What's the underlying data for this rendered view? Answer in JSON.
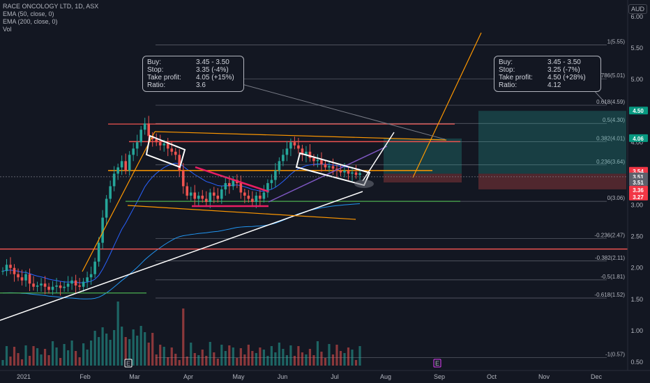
{
  "legend": {
    "title": "RACE ONCOLOGY LTD, 1D, ASX",
    "ema50": "EMA (50, close, 0)",
    "ema200": "EMA (200, close, 0)",
    "vol": "Vol"
  },
  "currency": "AUD",
  "notes": [
    {
      "rows": [
        {
          "k": "Buy:",
          "v": "3.45 - 3.50"
        },
        {
          "k": "Stop:",
          "v": "3.35 (-4%)"
        },
        {
          "k": "Take profit:",
          "v": "4.05 (+15%)"
        },
        {
          "k": "Ratio:",
          "v": "3.6"
        }
      ]
    },
    {
      "rows": [
        {
          "k": "Buy:",
          "v": "3.45 - 3.50"
        },
        {
          "k": "Stop:",
          "v": "3.25 (-7%)"
        },
        {
          "k": "Take profit:",
          "v": "4.50 (+28%)"
        },
        {
          "k": "Ratio:",
          "v": "4.12"
        }
      ]
    }
  ],
  "colors": {
    "background": "#131722",
    "up": "#26a69a",
    "down": "#ef5350",
    "ema50": "#2962ff",
    "ema200": "#2196f3",
    "support": "#ef5350",
    "target": "#4caf50",
    "orange": "#ff9800",
    "white": "#ffffff",
    "purple": "#7e57c2",
    "pink": "#e91e63",
    "fib": "#787b86",
    "badge_red": "#f23645",
    "badge_green": "#089981",
    "badge_grey": "#5d606b"
  },
  "chart_data": {
    "type": "candlestick",
    "y_axis_ticks": [
      "0.50",
      "1.00",
      "1.50",
      "2.00",
      "2.50",
      "3.00",
      "3.50",
      "4.00",
      "4.50",
      "5.00",
      "5.50",
      "6.00"
    ],
    "ylim": [
      0.45,
      6.25
    ],
    "x_axis_ticks": [
      "2021",
      "Feb",
      "Mar",
      "Apr",
      "May",
      "Jun",
      "Jul",
      "Aug",
      "Sep",
      "Oct",
      "Nov",
      "Dec"
    ],
    "price_badges": [
      {
        "label": "4.50",
        "value": 4.5,
        "color": "#089981"
      },
      {
        "label": "4.06",
        "value": 4.06,
        "color": "#089981"
      },
      {
        "label": "3.54",
        "value": 3.54,
        "color": "#f23645"
      },
      {
        "label": "3.51",
        "value": 3.45,
        "color": "#5d606b"
      },
      {
        "label": "3.51",
        "value": 3.36,
        "color": "#5d606b"
      },
      {
        "label": "3.36",
        "value": 3.24,
        "color": "#f23645"
      },
      {
        "label": "3.27",
        "value": 3.13,
        "color": "#f23645"
      }
    ],
    "fibonacci": [
      {
        "label": "1(5.55)",
        "value": 5.55
      },
      {
        "label": "0.786(5.01)",
        "value": 5.01
      },
      {
        "label": "0.618(4.59)",
        "value": 4.59
      },
      {
        "label": "0.5(4.30)",
        "value": 4.3
      },
      {
        "label": "0.382(4.01)",
        "value": 4.01
      },
      {
        "label": "0.236(3.64)",
        "value": 3.64
      },
      {
        "label": "0(3.06)",
        "value": 3.06
      },
      {
        "label": "-0.236(2.47)",
        "value": 2.47
      },
      {
        "label": "-0.382(2.11)",
        "value": 2.11
      },
      {
        "label": "-0.5(1.81)",
        "value": 1.81
      },
      {
        "label": "-0.618(1.52)",
        "value": 1.52
      },
      {
        "label": "-1(0.57)",
        "value": 0.57
      }
    ],
    "event_markers": [
      "E",
      "E"
    ],
    "close_series": [
      1.95,
      2.05,
      2.0,
      1.9,
      1.85,
      1.8,
      1.9,
      1.75,
      1.7,
      1.72,
      1.75,
      1.7,
      1.65,
      1.7,
      1.72,
      1.68,
      1.7,
      1.75,
      1.8,
      1.72,
      1.7,
      1.78,
      1.85,
      1.9,
      2.1,
      2.4,
      2.8,
      3.1,
      3.3,
      3.5,
      3.6,
      3.7,
      3.55,
      3.8,
      3.9,
      4.0,
      4.2,
      4.3,
      4.1,
      4.05,
      4.0,
      3.95,
      3.98,
      3.9,
      3.85,
      3.8,
      3.55,
      3.3,
      3.15,
      3.2,
      3.1,
      3.15,
      3.1,
      3.05,
      3.2,
      3.15,
      3.1,
      3.25,
      3.35,
      3.3,
      3.4,
      3.35,
      3.2,
      3.15,
      3.1,
      3.05,
      3.15,
      3.1,
      3.2,
      3.35,
      3.4,
      3.55,
      3.7,
      3.8,
      3.9,
      4.0,
      3.95,
      3.9,
      3.8,
      3.85,
      3.75,
      3.7,
      3.72,
      3.65,
      3.6,
      3.62,
      3.58,
      3.55,
      3.52,
      3.55,
      3.5,
      3.52,
      3.48,
      3.51
    ]
  }
}
